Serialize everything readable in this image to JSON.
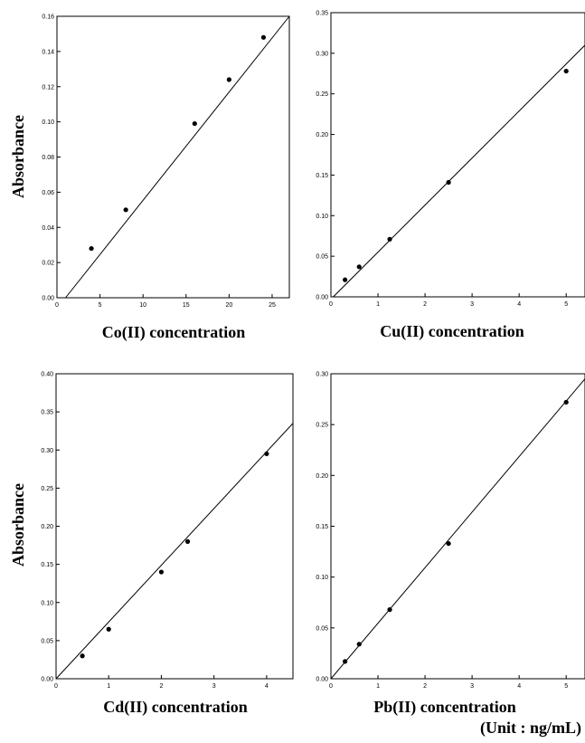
{
  "figure": {
    "unit_note": "(Unit : ng/mL)"
  },
  "chart_data": [
    {
      "type": "scatter",
      "xlabel": "Co(II) concentration",
      "ylabel": "Absorbance",
      "xlim": [
        0,
        27
      ],
      "ylim": [
        0,
        0.16
      ],
      "xticks": [
        0,
        5,
        10,
        15,
        20,
        25
      ],
      "xtick_labels": [
        "0",
        "5",
        "10",
        "15",
        "20",
        "25"
      ],
      "yticks": [
        0,
        0.02,
        0.04,
        0.06,
        0.08,
        0.1,
        0.12,
        0.14,
        0.16
      ],
      "ytick_labels": [
        "0.00",
        "0.02",
        "0.04",
        "0.06",
        "0.08",
        "0.10",
        "0.12",
        "0.14",
        "0.16"
      ],
      "points": [
        [
          4,
          0.028
        ],
        [
          8,
          0.05
        ],
        [
          16,
          0.099
        ],
        [
          20,
          0.124
        ],
        [
          24,
          0.148
        ]
      ],
      "fit_line": [
        [
          1,
          0
        ],
        [
          27,
          0.16
        ]
      ],
      "grid": false
    },
    {
      "type": "scatter",
      "xlabel": "Cu(II) concentration",
      "ylabel": "",
      "xlim": [
        0,
        5.4
      ],
      "ylim": [
        0,
        0.35
      ],
      "xticks": [
        0,
        1,
        2,
        3,
        4,
        5
      ],
      "xtick_labels": [
        "0",
        "1",
        "2",
        "3",
        "4",
        "5"
      ],
      "yticks": [
        0,
        0.05,
        0.1,
        0.15,
        0.2,
        0.25,
        0.3,
        0.35
      ],
      "ytick_labels": [
        "0.00",
        "0.05",
        "0.10",
        "0.15",
        "0.20",
        "0.25",
        "0.30",
        "0.35"
      ],
      "points": [
        [
          0.3,
          0.021
        ],
        [
          0.6,
          0.037
        ],
        [
          1.25,
          0.071
        ],
        [
          2.5,
          0.141
        ],
        [
          5,
          0.278
        ]
      ],
      "fit_line": [
        [
          0.05,
          0
        ],
        [
          5.4,
          0.31
        ]
      ],
      "grid": false
    },
    {
      "type": "scatter",
      "xlabel": "Cd(II) concentration",
      "ylabel": "Absorbance",
      "xlim": [
        0,
        4.5
      ],
      "ylim": [
        0,
        0.4
      ],
      "xticks": [
        0,
        1,
        2,
        3,
        4
      ],
      "xtick_labels": [
        "0",
        "1",
        "2",
        "3",
        "4"
      ],
      "yticks": [
        0,
        0.05,
        0.1,
        0.15,
        0.2,
        0.25,
        0.3,
        0.35,
        0.4
      ],
      "ytick_labels": [
        "0.00",
        "0.05",
        "0.10",
        "0.15",
        "0.20",
        "0.25",
        "0.30",
        "0.35",
        "0.40"
      ],
      "points": [
        [
          0.5,
          0.03
        ],
        [
          1,
          0.065
        ],
        [
          2,
          0.14
        ],
        [
          2.5,
          0.18
        ],
        [
          4,
          0.295
        ]
      ],
      "fit_line": [
        [
          0,
          0
        ],
        [
          4.5,
          0.335
        ]
      ],
      "grid": false
    },
    {
      "type": "scatter",
      "xlabel": "Pb(II) concentration",
      "ylabel": "",
      "xlim": [
        0,
        5.4
      ],
      "ylim": [
        0,
        0.3
      ],
      "xticks": [
        0,
        1,
        2,
        3,
        4,
        5
      ],
      "xtick_labels": [
        "0",
        "1",
        "2",
        "3",
        "4",
        "5"
      ],
      "yticks": [
        0,
        0.05,
        0.1,
        0.15,
        0.2,
        0.25,
        0.3
      ],
      "ytick_labels": [
        "0.00",
        "0.05",
        "0.10",
        "0.15",
        "0.20",
        "0.25",
        "0.30"
      ],
      "points": [
        [
          0.3,
          0.017
        ],
        [
          0.6,
          0.034
        ],
        [
          1.25,
          0.068
        ],
        [
          2.5,
          0.133
        ],
        [
          5,
          0.272
        ]
      ],
      "fit_line": [
        [
          0,
          0
        ],
        [
          5.4,
          0.295
        ]
      ],
      "grid": false
    }
  ]
}
